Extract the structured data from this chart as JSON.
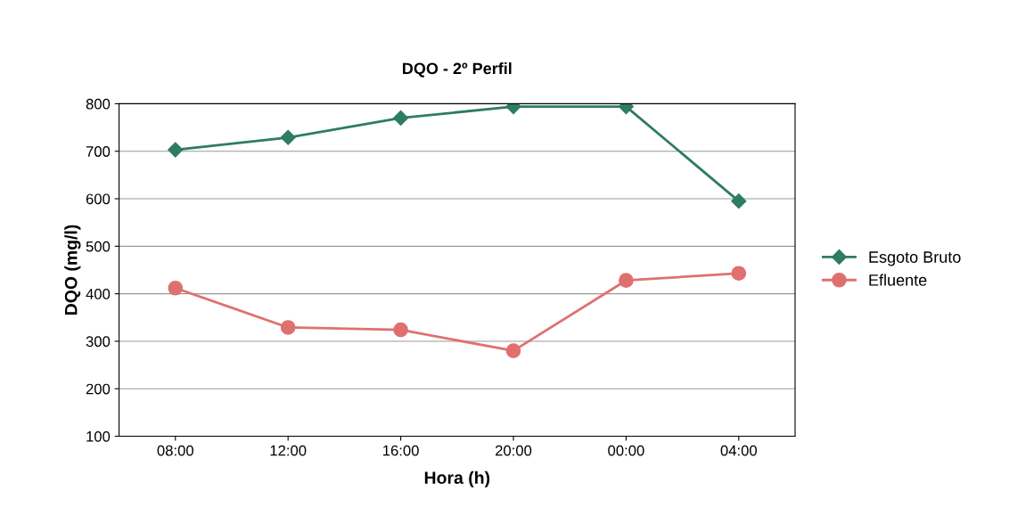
{
  "chart_data": {
    "type": "line",
    "title": "DQO - 2º Perfil",
    "xlabel": "Hora (h)",
    "ylabel": "DQO (mg/l)",
    "categories": [
      "08:00",
      "12:00",
      "16:00",
      "20:00",
      "00:00",
      "04:00"
    ],
    "series": [
      {
        "name": "Esgoto Bruto",
        "color": "#2e7d5e",
        "marker": "diamond",
        "values": [
          703,
          729,
          770,
          794,
          794,
          595
        ]
      },
      {
        "name": "Efluente",
        "color": "#e07070",
        "marker": "circle",
        "values": [
          412,
          329,
          324,
          280,
          428,
          443
        ]
      }
    ],
    "ylim": [
      100,
      800
    ],
    "yticks": [
      100,
      200,
      300,
      400,
      500,
      600,
      700,
      800
    ],
    "grid": "y",
    "legend": "right"
  }
}
